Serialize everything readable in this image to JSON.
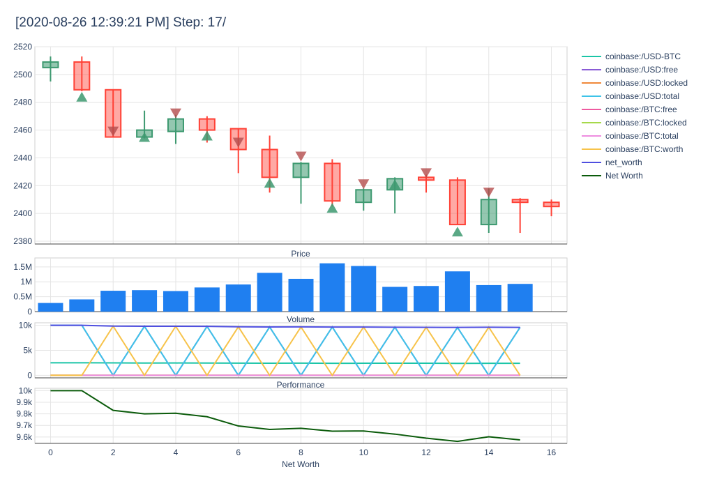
{
  "title": "[2020-08-26 12:39:21 PM] Step: 17/",
  "chart_data": [
    {
      "type": "candlestick",
      "x": [
        0,
        1,
        2,
        3,
        4,
        5,
        6,
        7,
        8,
        9,
        10,
        11,
        12,
        13,
        14,
        15,
        16
      ],
      "candles": [
        {
          "o": 2505,
          "h": 2513,
          "l": 2495,
          "c": 2509
        },
        {
          "o": 2509,
          "h": 2513,
          "l": 2488,
          "c": 2489
        },
        {
          "o": 2489,
          "h": 2489,
          "l": 2455,
          "c": 2455
        },
        {
          "o": 2455,
          "h": 2474,
          "l": 2454,
          "c": 2460
        },
        {
          "o": 2459,
          "h": 2471,
          "l": 2450,
          "c": 2468
        },
        {
          "o": 2468,
          "h": 2470,
          "l": 2451,
          "c": 2460
        },
        {
          "o": 2461,
          "h": 2461,
          "l": 2429,
          "c": 2446
        },
        {
          "o": 2446,
          "h": 2456,
          "l": 2415,
          "c": 2426
        },
        {
          "o": 2426,
          "h": 2437,
          "l": 2407,
          "c": 2436
        },
        {
          "o": 2436,
          "h": 2439,
          "l": 2405,
          "c": 2409
        },
        {
          "o": 2408,
          "h": 2418,
          "l": 2402,
          "c": 2417
        },
        {
          "o": 2417,
          "h": 2426,
          "l": 2400,
          "c": 2425
        },
        {
          "o": 2426,
          "h": 2428,
          "l": 2415,
          "c": 2424
        },
        {
          "o": 2424,
          "h": 2426,
          "l": 2392,
          "c": 2392
        },
        {
          "o": 2392,
          "h": 2418,
          "l": 2386,
          "c": 2410
        },
        {
          "o": 2410,
          "h": 2411,
          "l": 2386,
          "c": 2408
        },
        {
          "o": 2408,
          "h": 2410,
          "l": 2398,
          "c": 2405
        }
      ],
      "buy_markers": [
        {
          "x": 1,
          "y": 2484
        },
        {
          "x": 3,
          "y": 2455
        },
        {
          "x": 5,
          "y": 2456
        },
        {
          "x": 7,
          "y": 2422
        },
        {
          "x": 9,
          "y": 2404
        },
        {
          "x": 11,
          "y": 2421
        },
        {
          "x": 13,
          "y": 2387
        }
      ],
      "sell_markers": [
        {
          "x": 2,
          "y": 2459
        },
        {
          "x": 4,
          "y": 2472
        },
        {
          "x": 6,
          "y": 2451
        },
        {
          "x": 8,
          "y": 2441
        },
        {
          "x": 10,
          "y": 2421
        },
        {
          "x": 12,
          "y": 2429
        },
        {
          "x": 14,
          "y": 2415
        }
      ],
      "ylim": [
        2378,
        2520
      ],
      "yticks": [
        2380,
        2400,
        2420,
        2440,
        2460,
        2480,
        2500,
        2520
      ],
      "colors": {
        "up": "#3d9970",
        "down": "#ff4136",
        "buy": "#3d9970",
        "sell": "#b44c4c"
      }
    },
    {
      "type": "bar",
      "title": "Price",
      "x": [
        0,
        1,
        2,
        3,
        4,
        5,
        6,
        7,
        8,
        9,
        10,
        11,
        12,
        13,
        14,
        15
      ],
      "values": [
        290000,
        410000,
        700000,
        720000,
        690000,
        810000,
        910000,
        1300000,
        1100000,
        1620000,
        1530000,
        830000,
        860000,
        1350000,
        890000,
        930000
      ],
      "ylim": [
        0,
        1800000
      ],
      "yticks": [
        {
          "v": 0,
          "label": "0"
        },
        {
          "v": 500000,
          "label": "0.5M"
        },
        {
          "v": 1000000,
          "label": "1M"
        },
        {
          "v": 1500000,
          "label": "1.5M"
        }
      ],
      "color": "#1f7ff0"
    },
    {
      "type": "line",
      "title": "Volume",
      "x": [
        0,
        1,
        2,
        3,
        4,
        5,
        6,
        7,
        8,
        9,
        10,
        11,
        12,
        13,
        14,
        15
      ],
      "series": [
        {
          "name": "coinbase:/USD-BTC",
          "color": "#1bc5a7",
          "values": [
            2505,
            2509,
            2489,
            2460,
            2468,
            2460,
            2446,
            2426,
            2436,
            2409,
            2417,
            2425,
            2424,
            2392,
            2410,
            2408
          ]
        },
        {
          "name": "coinbase:/USD:free",
          "color": "#8a5bd6",
          "values": [
            10000,
            10000,
            0,
            9800,
            0,
            9780,
            0,
            9660,
            0,
            9650,
            0,
            9620,
            0,
            9570,
            0,
            9580
          ]
        },
        {
          "name": "coinbase:/USD:locked",
          "color": "#f0883a",
          "values": [
            0,
            0,
            0,
            0,
            0,
            0,
            0,
            0,
            0,
            0,
            0,
            0,
            0,
            0,
            0,
            0
          ]
        },
        {
          "name": "coinbase:/USD:total",
          "color": "#3ec3e8",
          "values": [
            10000,
            10000,
            0,
            9800,
            0,
            9780,
            0,
            9660,
            0,
            9650,
            0,
            9620,
            0,
            9570,
            0,
            9580
          ]
        },
        {
          "name": "coinbase:/BTC:free",
          "color": "#ef5aa0",
          "values": [
            0,
            0,
            4,
            0,
            3.95,
            0,
            3.96,
            0,
            3.99,
            0,
            4.0,
            0,
            3.96,
            0,
            3.98,
            0
          ]
        },
        {
          "name": "coinbase:/BTC:locked",
          "color": "#a6d94b",
          "values": [
            0,
            0,
            0,
            0,
            0,
            0,
            0,
            0,
            0,
            0,
            0,
            0,
            0,
            0,
            0,
            0
          ]
        },
        {
          "name": "coinbase:/BTC:total",
          "color": "#ee8de0",
          "values": [
            0,
            0,
            4,
            0,
            3.95,
            0,
            3.96,
            0,
            3.99,
            0,
            4.0,
            0,
            3.96,
            0,
            3.98,
            0
          ]
        },
        {
          "name": "coinbase:/BTC:worth",
          "color": "#f7c34a",
          "values": [
            0,
            0,
            9830,
            0,
            9805,
            0,
            9695,
            0,
            9675,
            0,
            9650,
            0,
            9600,
            0,
            9610,
            0
          ]
        },
        {
          "name": "net_worth",
          "color": "#4f4fe0",
          "values": [
            10000,
            10000,
            9830,
            9800,
            9805,
            9780,
            9695,
            9660,
            9675,
            9650,
            9650,
            9620,
            9600,
            9570,
            9610,
            9580
          ]
        }
      ],
      "ylim": [
        -500,
        10500
      ],
      "yticks": [
        {
          "v": 0,
          "label": "0"
        },
        {
          "v": 5000,
          "label": "5k"
        },
        {
          "v": 10000,
          "label": "10k"
        }
      ]
    },
    {
      "type": "line",
      "title": "Performance",
      "xlabel": "Net Worth",
      "x": [
        0,
        1,
        2,
        3,
        4,
        5,
        6,
        7,
        8,
        9,
        10,
        11,
        12,
        13,
        14,
        15
      ],
      "series": [
        {
          "name": "Net Worth",
          "color": "#0b5b0b",
          "values": [
            10000,
            10000,
            9830,
            9800,
            9805,
            9775,
            9695,
            9665,
            9675,
            9650,
            9652,
            9625,
            9590,
            9562,
            9602,
            9575
          ]
        }
      ],
      "ylim": [
        9545,
        10020
      ],
      "yticks": [
        {
          "v": 9600,
          "label": "9.6k"
        },
        {
          "v": 9700,
          "label": "9.7k"
        },
        {
          "v": 9800,
          "label": "9.8k"
        },
        {
          "v": 9900,
          "label": "9.9k"
        },
        {
          "v": 10000,
          "label": "10k"
        }
      ],
      "xticks": [
        0,
        2,
        4,
        6,
        8,
        10,
        12,
        14,
        16
      ]
    }
  ],
  "legend": [
    {
      "name": "coinbase:/USD-BTC",
      "color": "#1bc5a7"
    },
    {
      "name": "coinbase:/USD:free",
      "color": "#8a5bd6"
    },
    {
      "name": "coinbase:/USD:locked",
      "color": "#f0883a"
    },
    {
      "name": "coinbase:/USD:total",
      "color": "#3ec3e8"
    },
    {
      "name": "coinbase:/BTC:free",
      "color": "#ef5aa0"
    },
    {
      "name": "coinbase:/BTC:locked",
      "color": "#a6d94b"
    },
    {
      "name": "coinbase:/BTC:total",
      "color": "#ee8de0"
    },
    {
      "name": "coinbase:/BTC:worth",
      "color": "#f7c34a"
    },
    {
      "name": "net_worth",
      "color": "#4f4fe0"
    },
    {
      "name": "Net Worth",
      "color": "#0b5b0b"
    }
  ]
}
